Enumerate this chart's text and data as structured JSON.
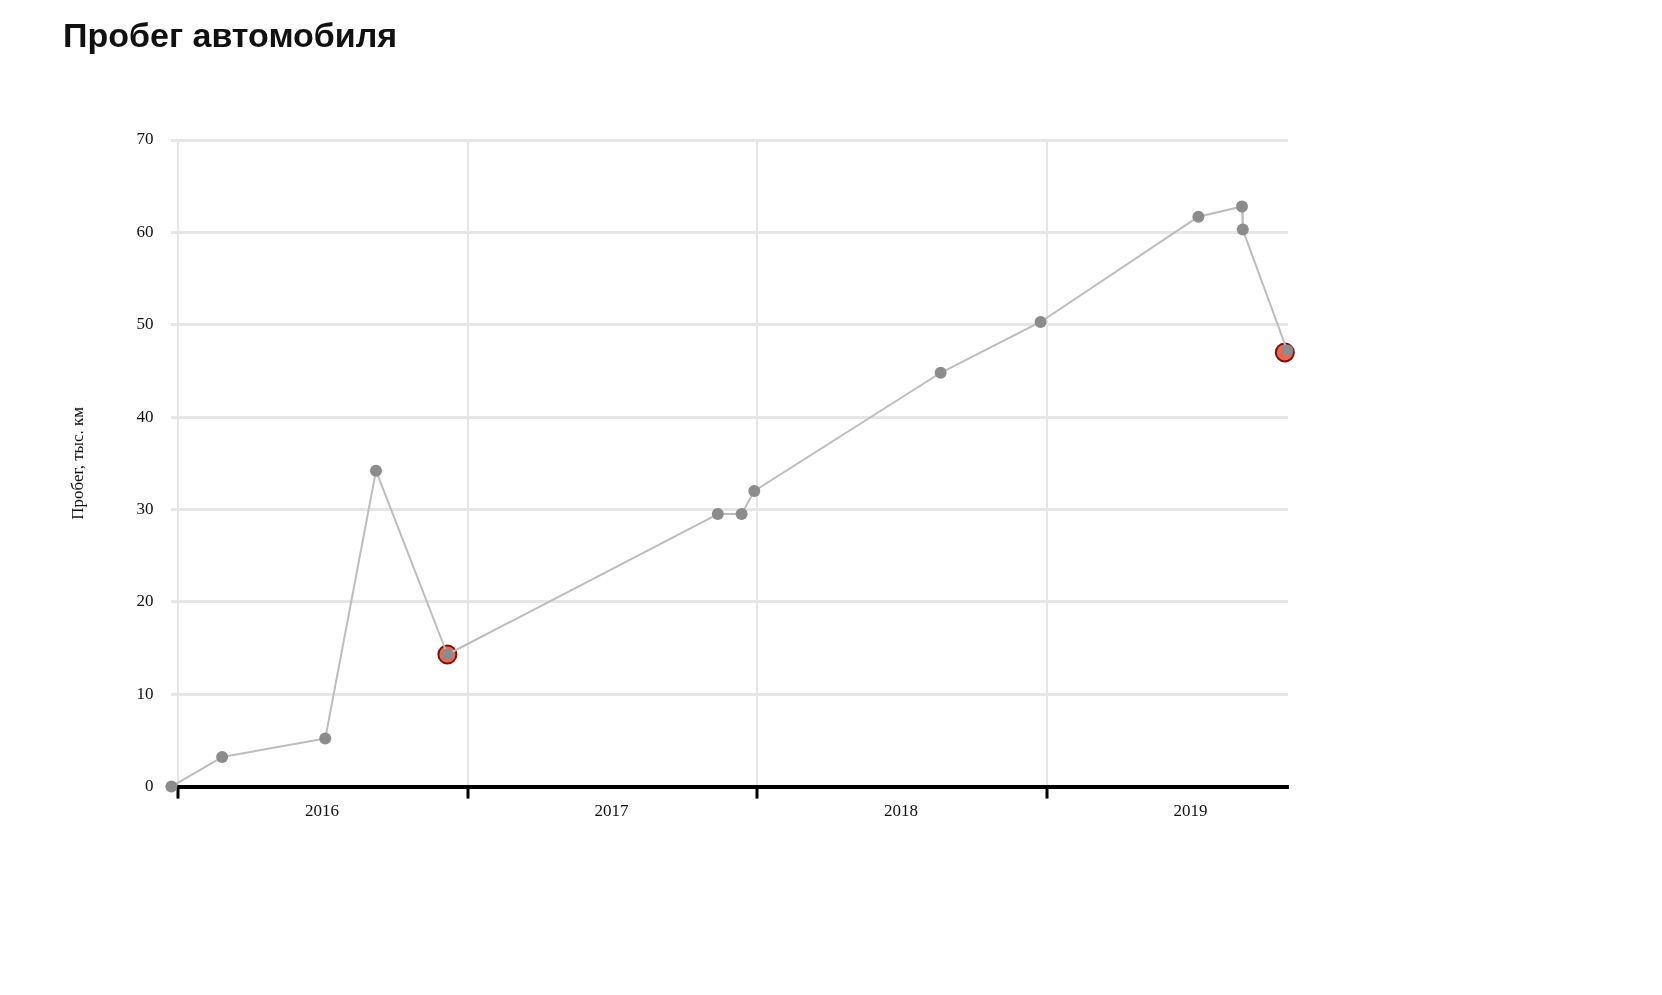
{
  "chart_data": {
    "type": "line",
    "title": "Пробег автомобиля",
    "ylabel": "Пробег, тыс. км",
    "xlim": [
      "2015-12-24",
      "2019-11-01"
    ],
    "xticks": [
      {
        "value": "2016-01-01",
        "label": null
      },
      {
        "value": "2016-07-01",
        "label": "2016"
      },
      {
        "value": "2017-01-01",
        "label": null
      },
      {
        "value": "2017-07-01",
        "label": "2017"
      },
      {
        "value": "2018-01-01",
        "label": null
      },
      {
        "value": "2018-07-01",
        "label": "2018"
      },
      {
        "value": "2019-01-01",
        "label": null
      },
      {
        "value": "2019-07-01",
        "label": "2019"
      }
    ],
    "ylim": [
      0,
      70
    ],
    "yticks": [
      0,
      10,
      20,
      30,
      40,
      50,
      60,
      70
    ],
    "grid": true,
    "legend": false,
    "marker": "circle",
    "line_style": "solid",
    "series": [
      {
        "type": "line",
        "color": "#bdbdbd",
        "colors": [
          "#8c8c8c",
          "#8c8c8c",
          "#8c8c8c",
          "#8c8c8c",
          "#8c8c8c",
          "#8c8c8c",
          "#8c8c8c",
          "#8c8c8c",
          "#8c8c8c",
          "#8c8c8c",
          "#8c8c8c",
          "#8c8c8c",
          "#8c8c8c",
          "#8c8c8c"
        ],
        "x": [
          "2015-12-24",
          "2016-02-26",
          "2016-07-05",
          "2016-09-07",
          "2016-12-06",
          "2017-11-12",
          "2017-12-12",
          "2017-12-28",
          "2018-08-20",
          "2018-12-24",
          "2019-07-11",
          "2019-09-04",
          "2019-09-05",
          "2019-10-31"
        ],
        "values": [
          0,
          3.2,
          5.2,
          34.2,
          14.3,
          29.5,
          29.5,
          32,
          44.8,
          50.3,
          61.7,
          62.8,
          60.3,
          47.2
        ]
      },
      {
        "type": "scatter",
        "color": "#ff6347",
        "x": [
          "2016-12-06",
          "2019-10-28"
        ],
        "values": [
          14.3,
          47
        ]
      }
    ]
  }
}
